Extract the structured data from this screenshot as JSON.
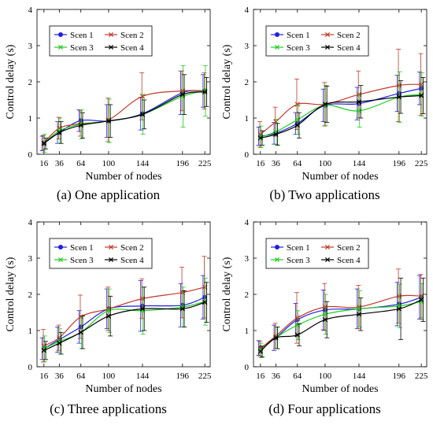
{
  "series_colors": [
    "#1f1fe0",
    "#c0392b",
    "#22cc22",
    "#000000"
  ],
  "chart_data": [
    {
      "type": "line",
      "caption": "(a) One application",
      "xlabel": "Number of nodes",
      "ylabel": "Control delay (s)",
      "x": [
        16,
        36,
        64,
        100,
        144,
        196,
        225
      ],
      "xlim": [
        7,
        232
      ],
      "ylim": [
        0,
        4
      ],
      "yticks": [
        0,
        1,
        2,
        3,
        4
      ],
      "legend": "top-left",
      "series": [
        {
          "name": "Scen 1",
          "values": [
            0.3,
            0.6,
            0.93,
            0.92,
            1.12,
            1.7,
            1.75
          ],
          "err": [
            0.2,
            0.3,
            0.3,
            0.45,
            0.45,
            0.6,
            0.45
          ]
        },
        {
          "name": "Scen 2",
          "values": [
            0.32,
            0.72,
            0.85,
            0.95,
            1.6,
            1.75,
            1.75
          ],
          "err": [
            0.2,
            0.3,
            0.35,
            0.6,
            0.65,
            0.55,
            0.5
          ]
        },
        {
          "name": "Scen 3",
          "values": [
            0.3,
            0.65,
            0.83,
            0.92,
            1.1,
            1.6,
            1.75
          ],
          "err": [
            0.25,
            0.35,
            0.4,
            0.6,
            0.55,
            0.85,
            0.7
          ]
        },
        {
          "name": "Scen 4",
          "values": [
            0.3,
            0.6,
            0.8,
            0.92,
            1.1,
            1.65,
            1.72
          ],
          "err": [
            0.15,
            0.3,
            0.35,
            0.45,
            0.4,
            0.55,
            0.4
          ]
        }
      ]
    },
    {
      "type": "line",
      "caption": "(b) Two applications",
      "xlabel": "Number of nodes",
      "ylabel": "Control delay (s)",
      "x": [
        16,
        36,
        64,
        100,
        144,
        196,
        225
      ],
      "xlim": [
        7,
        232
      ],
      "ylim": [
        0,
        4
      ],
      "yticks": [
        0,
        1,
        2,
        3,
        4
      ],
      "legend": "top-left",
      "series": [
        {
          "name": "Scen 1",
          "values": [
            0.5,
            0.58,
            0.85,
            1.35,
            1.4,
            1.68,
            1.82
          ],
          "err": [
            0.25,
            0.3,
            0.3,
            0.45,
            0.45,
            0.5,
            0.45
          ]
        },
        {
          "name": "Scen 2",
          "values": [
            0.55,
            0.9,
            1.38,
            1.38,
            1.65,
            1.9,
            1.93
          ],
          "err": [
            0.35,
            0.4,
            0.7,
            0.6,
            0.65,
            1.0,
            0.85
          ]
        },
        {
          "name": "Scen 3",
          "values": [
            0.48,
            0.62,
            0.95,
            1.35,
            1.2,
            1.58,
            1.65
          ],
          "err": [
            0.3,
            0.35,
            0.4,
            0.55,
            0.45,
            0.7,
            0.6
          ]
        },
        {
          "name": "Scen 4",
          "values": [
            0.45,
            0.55,
            0.8,
            1.38,
            1.45,
            1.58,
            1.62
          ],
          "err": [
            0.2,
            0.3,
            0.35,
            0.5,
            0.45,
            0.45,
            0.5
          ]
        }
      ]
    },
    {
      "type": "line",
      "caption": "(c) Three applications",
      "xlabel": "Number of nodes",
      "ylabel": "Control delay (s)",
      "x": [
        16,
        36,
        64,
        100,
        144,
        196,
        225
      ],
      "xlim": [
        7,
        232
      ],
      "ylim": [
        0,
        4
      ],
      "yticks": [
        0,
        1,
        2,
        3,
        4
      ],
      "legend": "top-left",
      "series": [
        {
          "name": "Scen 1",
          "values": [
            0.5,
            0.75,
            1.1,
            1.6,
            1.68,
            1.7,
            1.92
          ],
          "err": [
            0.3,
            0.35,
            0.45,
            0.55,
            0.7,
            0.6,
            0.6
          ]
        },
        {
          "name": "Scen 2",
          "values": [
            0.58,
            0.8,
            1.38,
            1.6,
            1.88,
            2.05,
            2.2
          ],
          "err": [
            0.45,
            0.35,
            0.6,
            0.6,
            0.55,
            0.7,
            0.85
          ]
        },
        {
          "name": "Scen 3",
          "values": [
            0.5,
            0.7,
            0.95,
            1.55,
            1.55,
            1.65,
            1.8
          ],
          "err": [
            0.35,
            0.35,
            0.45,
            0.6,
            0.65,
            0.55,
            0.65
          ]
        },
        {
          "name": "Scen 4",
          "values": [
            0.45,
            0.65,
            0.95,
            1.4,
            1.6,
            1.6,
            1.78
          ],
          "err": [
            0.25,
            0.3,
            0.45,
            0.55,
            0.6,
            0.5,
            0.55
          ]
        }
      ]
    },
    {
      "type": "line",
      "caption": "(d) Four applications",
      "xlabel": "Number of nodes",
      "ylabel": "Control delay (s)",
      "x": [
        16,
        36,
        64,
        100,
        144,
        196,
        225
      ],
      "xlim": [
        7,
        232
      ],
      "ylim": [
        0,
        4
      ],
      "yticks": [
        0,
        1,
        2,
        3,
        4
      ],
      "legend": "top-left",
      "series": [
        {
          "name": "Scen 1",
          "values": [
            0.52,
            0.8,
            1.3,
            1.57,
            1.6,
            1.73,
            1.92
          ],
          "err": [
            0.2,
            0.35,
            0.45,
            0.55,
            0.55,
            0.6,
            0.6
          ]
        },
        {
          "name": "Scen 2",
          "values": [
            0.5,
            0.85,
            1.35,
            1.65,
            1.65,
            1.95,
            1.95
          ],
          "err": [
            0.2,
            0.35,
            0.7,
            0.65,
            0.6,
            0.75,
            0.6
          ]
        },
        {
          "name": "Scen 3",
          "values": [
            0.45,
            0.8,
            1.15,
            1.45,
            1.6,
            1.68,
            1.8
          ],
          "err": [
            0.2,
            0.3,
            0.4,
            0.55,
            0.5,
            0.6,
            0.5
          ]
        },
        {
          "name": "Scen 4",
          "values": [
            0.42,
            0.8,
            0.88,
            1.3,
            1.45,
            1.6,
            1.85
          ],
          "err": [
            0.15,
            0.3,
            0.3,
            0.5,
            0.45,
            0.85,
            0.6
          ]
        }
      ]
    }
  ]
}
